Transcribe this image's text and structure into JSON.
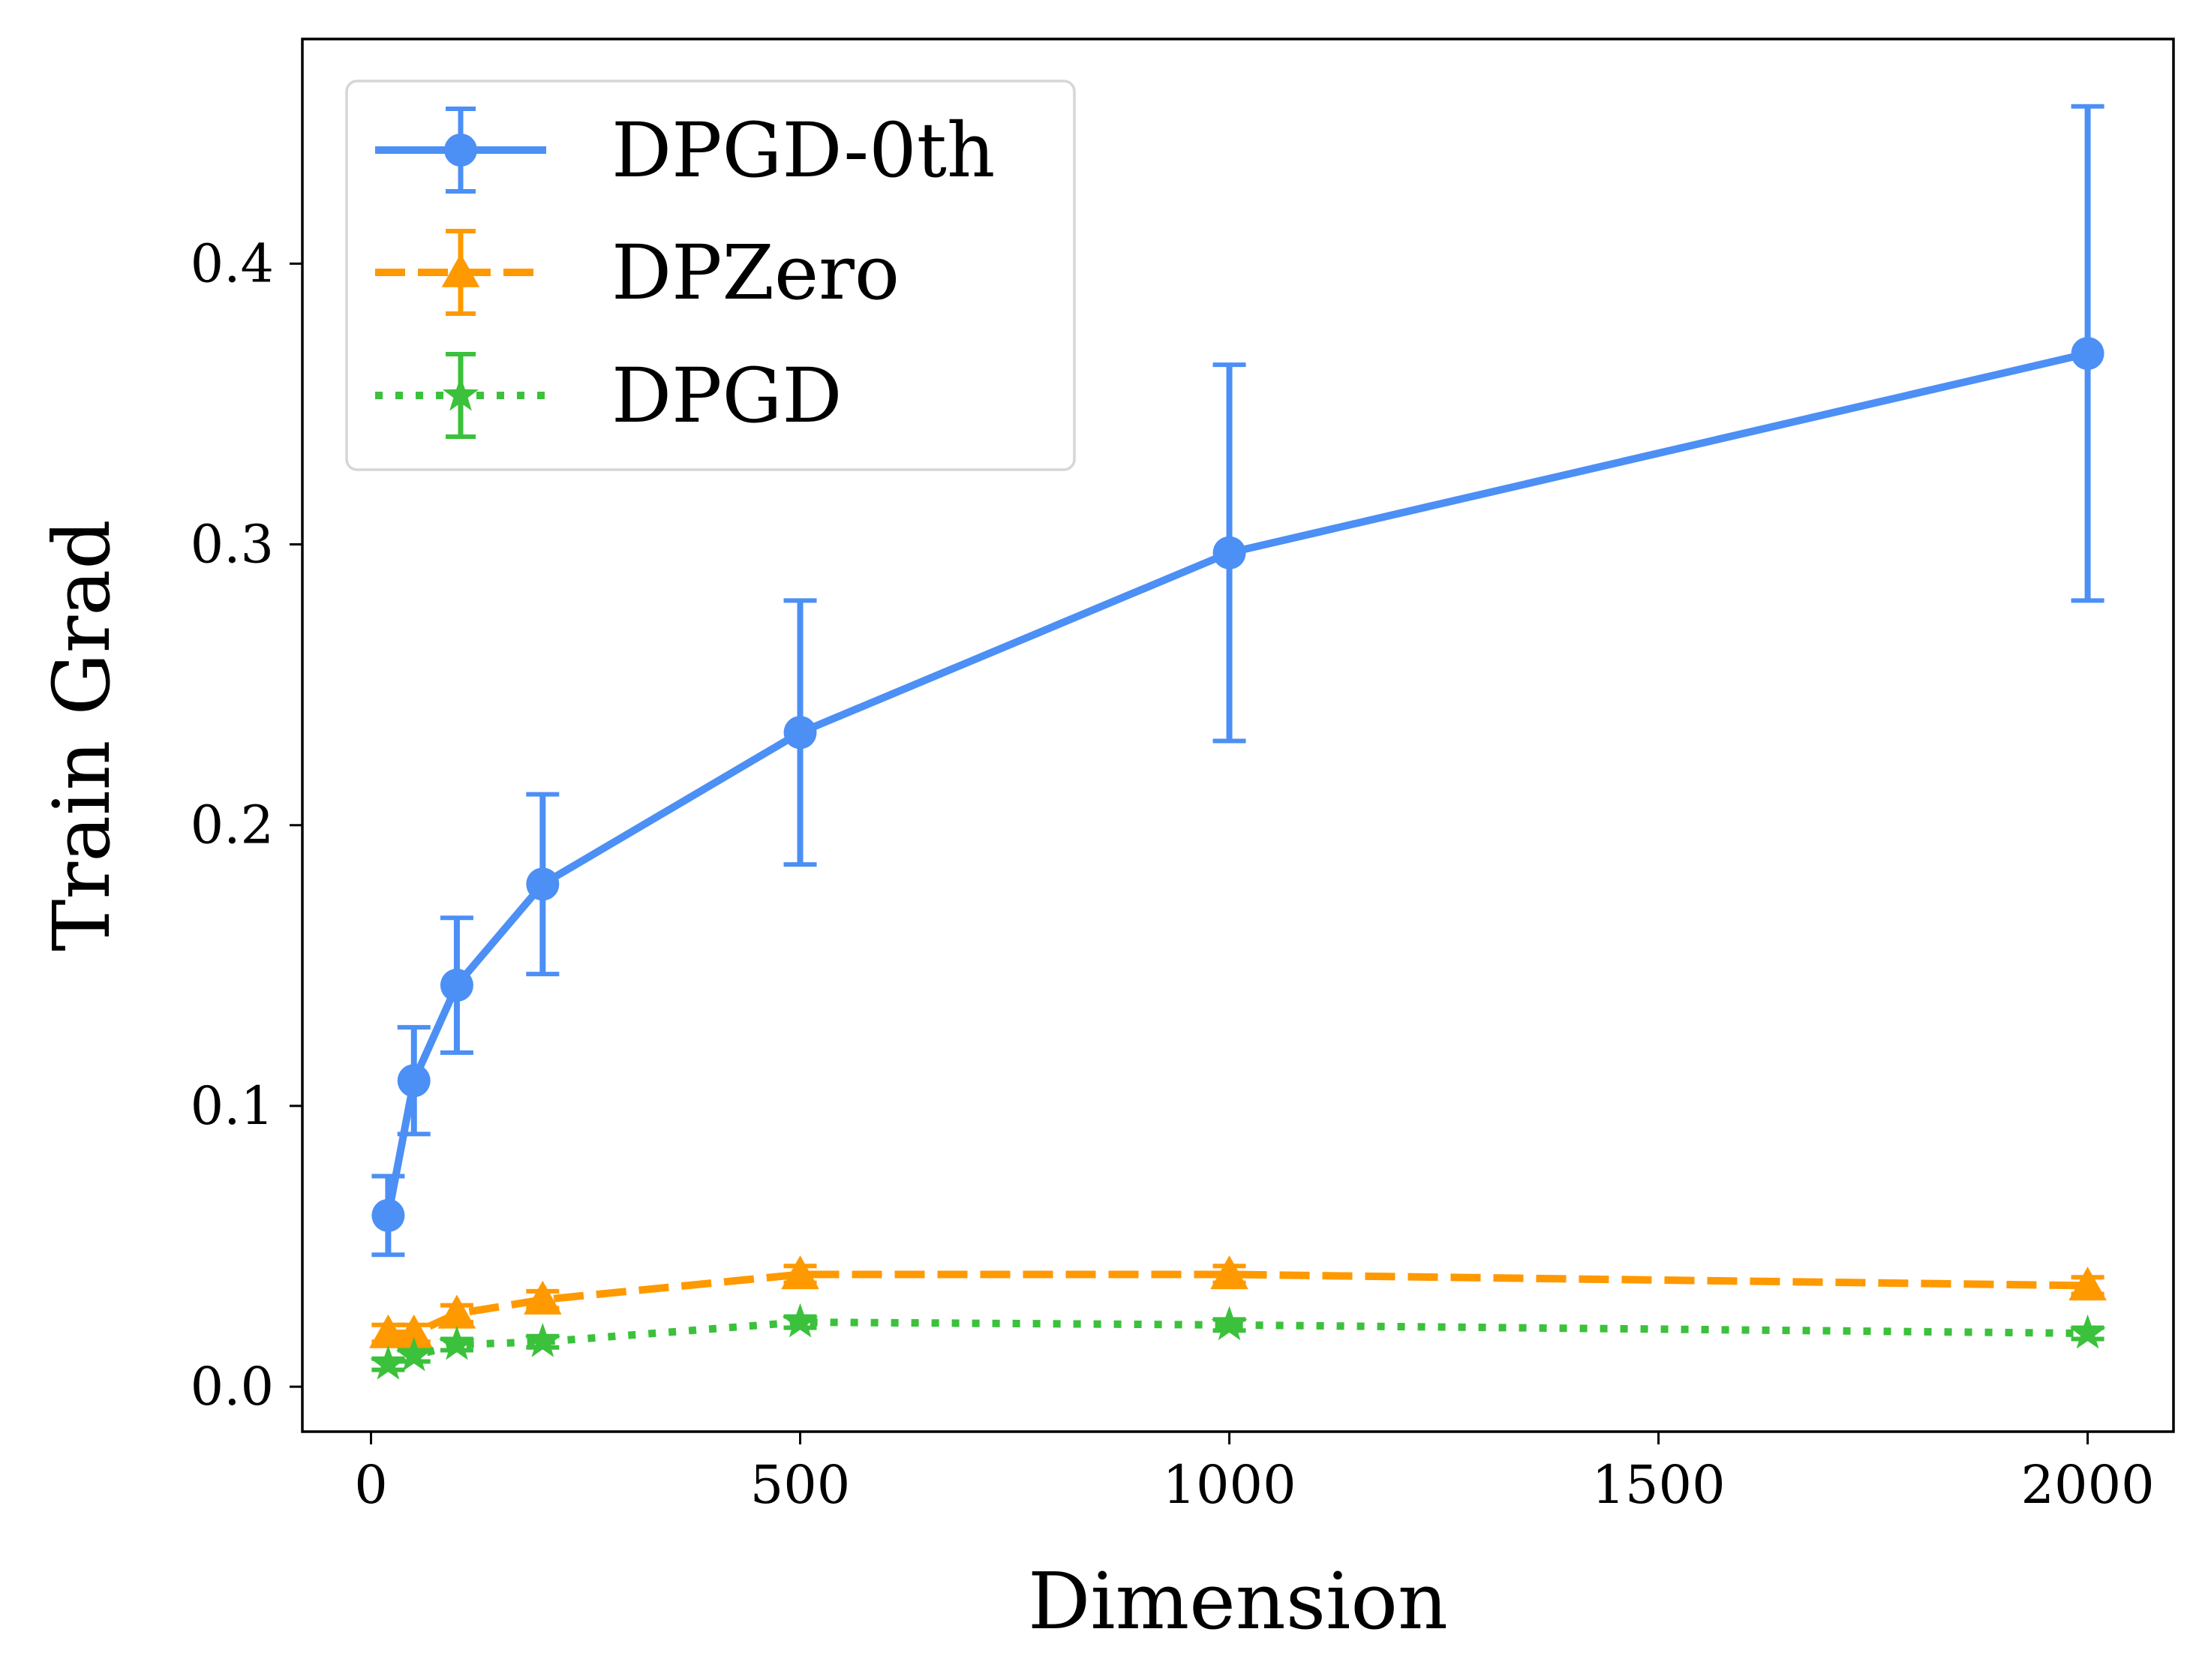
{
  "chart_data": {
    "type": "line",
    "title": "",
    "xlabel": "Dimension",
    "ylabel": "Train Grad",
    "xlim": [
      -80,
      2100
    ],
    "ylim": [
      -0.016,
      0.48
    ],
    "xticks": [
      0,
      500,
      1000,
      1500,
      2000
    ],
    "xtick_labels": [
      "0",
      "500",
      "1000",
      "1500",
      "2000"
    ],
    "yticks": [
      0.0,
      0.1,
      0.2,
      0.3,
      0.4
    ],
    "ytick_labels": [
      "0.0",
      "0.1",
      "0.2",
      "0.3",
      "0.4"
    ],
    "grid": false,
    "legend_position": "top-left",
    "series": [
      {
        "name": "DPGD-0th",
        "color": "#4c8ff5",
        "line_style": "solid",
        "marker": "circle",
        "x": [
          20,
          50,
          100,
          200,
          500,
          1000,
          2000
        ],
        "y": [
          0.061,
          0.109,
          0.143,
          0.179,
          0.233,
          0.297,
          0.368
        ],
        "err": [
          0.014,
          0.019,
          0.024,
          0.032,
          0.047,
          0.067,
          0.088
        ]
      },
      {
        "name": "DPZero",
        "color": "#ff9900",
        "line_style": "dashed",
        "marker": "triangle",
        "x": [
          20,
          50,
          100,
          200,
          500,
          1000,
          2000
        ],
        "y": [
          0.019,
          0.019,
          0.026,
          0.031,
          0.04,
          0.04,
          0.036
        ],
        "err": [
          0.003,
          0.003,
          0.003,
          0.003,
          0.003,
          0.003,
          0.003
        ]
      },
      {
        "name": "DPGD",
        "color": "#3bc13b",
        "line_style": "dotted",
        "marker": "star",
        "x": [
          20,
          50,
          100,
          200,
          500,
          1000,
          2000
        ],
        "y": [
          0.008,
          0.011,
          0.015,
          0.016,
          0.023,
          0.022,
          0.019
        ],
        "err": [
          0.002,
          0.002,
          0.002,
          0.002,
          0.002,
          0.002,
          0.002
        ]
      }
    ]
  }
}
